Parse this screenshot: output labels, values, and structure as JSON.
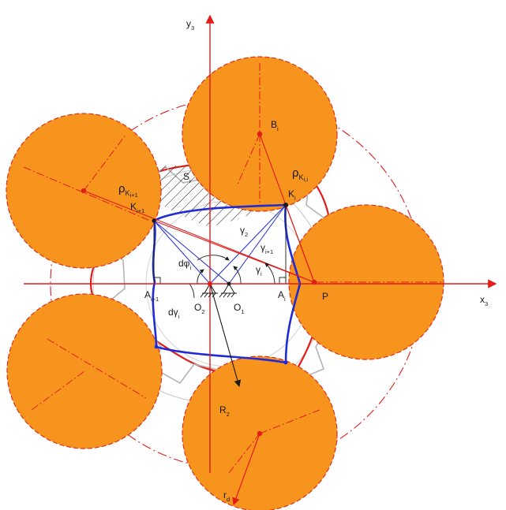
{
  "axes": {
    "y_axis_label": "y",
    "y_axis_subscript": "3",
    "x_axis_label": "x",
    "x_axis_subscript": "3"
  },
  "labels": {
    "B_i": {
      "base": "B",
      "sub": "i"
    },
    "rho_K_i_i": {
      "base": "ρ",
      "sub": "K",
      "subsub": "i,i"
    },
    "K_i": {
      "base": "K",
      "sub": "i"
    },
    "rho_K_i_plus_1": {
      "base": "ρ",
      "sub": "K",
      "subsub": "i+1"
    },
    "K_i_plus_1": {
      "base": "K",
      "sub": "i+1"
    },
    "S_i": {
      "base": "S",
      "sub": "i"
    },
    "gamma_2": {
      "base": "γ",
      "sub": "2"
    },
    "gamma_i_plus_1": {
      "base": "γ",
      "sub": "i+1"
    },
    "gamma_i": {
      "base": "γ",
      "sub": "i"
    },
    "d_phi_i": {
      "base": "dφ",
      "sub": "i"
    },
    "d_gamma_i": {
      "base": "dγ",
      "sub": "i"
    },
    "A_i_plus_1": {
      "base": "A",
      "sub": "i+1"
    },
    "A_i": {
      "base": "A",
      "sub": "i"
    },
    "O_2": {
      "base": "O",
      "sub": "2"
    },
    "O_1": {
      "base": "O",
      "sub": "1"
    },
    "P": {
      "base": "P",
      "sub": ""
    },
    "R_2": {
      "base": "R",
      "sub": "2"
    },
    "r_d": {
      "base": "r",
      "sub": "d"
    }
  },
  "colors": {
    "roller_fill": "#f7941d",
    "roller_edge": "#e0301e",
    "red_line": "#e21b1b",
    "blue_profile": "#1f2bd6",
    "gray_profile": "#b3b3b3",
    "black": "#1a1a1a",
    "axis_red": "#e21b1b"
  }
}
